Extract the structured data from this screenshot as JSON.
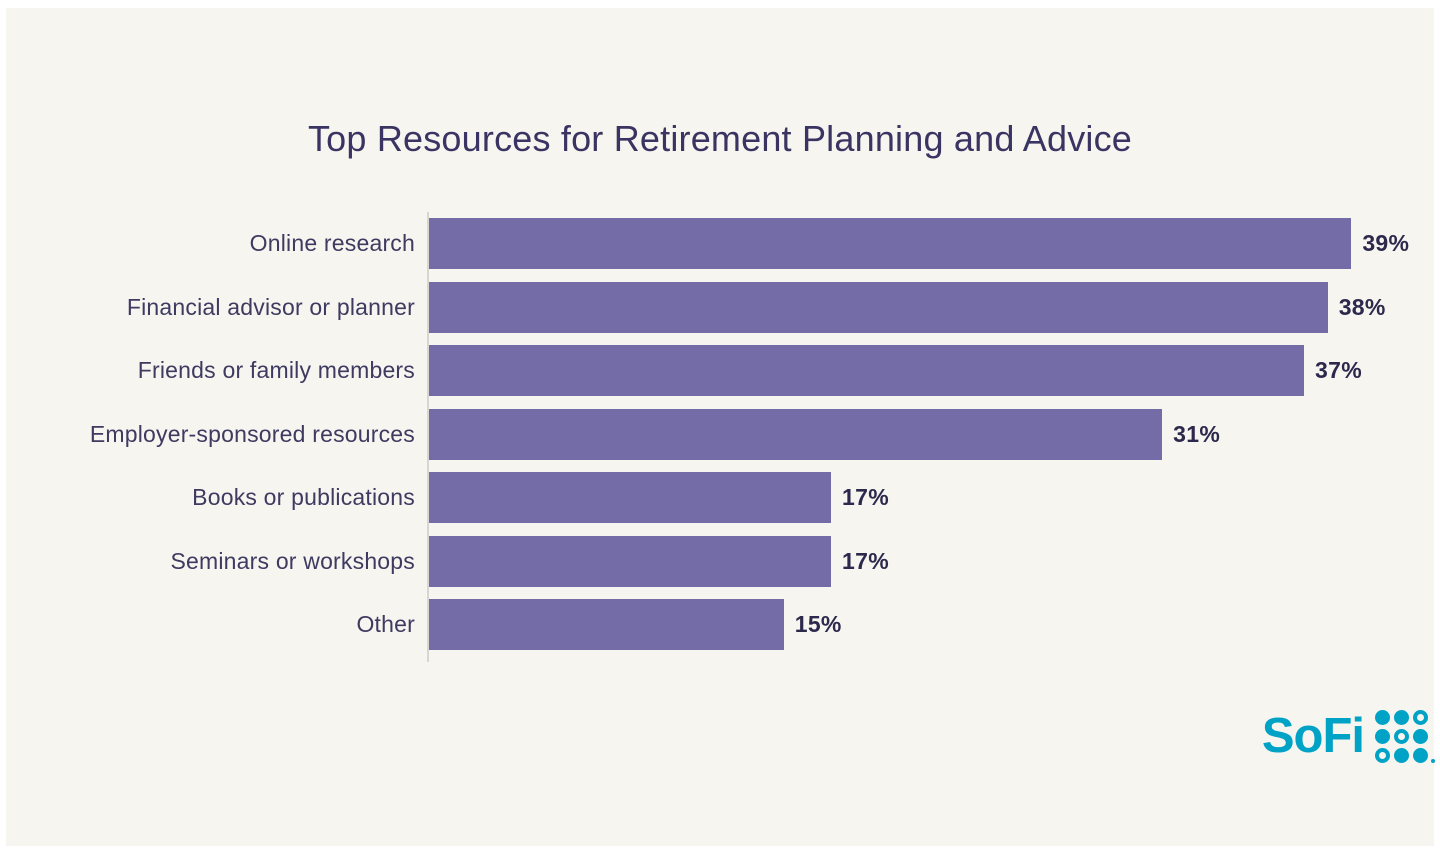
{
  "chart_data": {
    "type": "bar",
    "orientation": "horizontal",
    "title": "Top Resources for Retirement Planning and Advice",
    "categories": [
      "Online research",
      "Financial advisor or planner",
      "Friends or family members",
      "Employer-sponsored resources",
      "Books or publications",
      "Seminars or workshops",
      "Other"
    ],
    "values": [
      39,
      38,
      37,
      31,
      17,
      17,
      15
    ],
    "value_suffix": "%",
    "xlabel": "",
    "ylabel": "",
    "xlim": [
      0,
      42
    ],
    "grid": false,
    "legend": "none",
    "value_label_position": "end-of-bar"
  },
  "branding": {
    "logo_text": "SoFi",
    "logo_dots_pattern": [
      [
        "filled",
        "filled",
        "ring"
      ],
      [
        "filled",
        "ring",
        "filled"
      ],
      [
        "ring",
        "filled",
        "filled"
      ]
    ]
  },
  "colors": {
    "background": "#f7f5f0",
    "frame": "#ffffff",
    "bar": "#746ca6",
    "title_text": "#3a3462",
    "category_text": "#3e3a60",
    "value_text": "#2c294d",
    "axis_line": "#d8d6d0",
    "logo_teal": "#00a2c6"
  }
}
